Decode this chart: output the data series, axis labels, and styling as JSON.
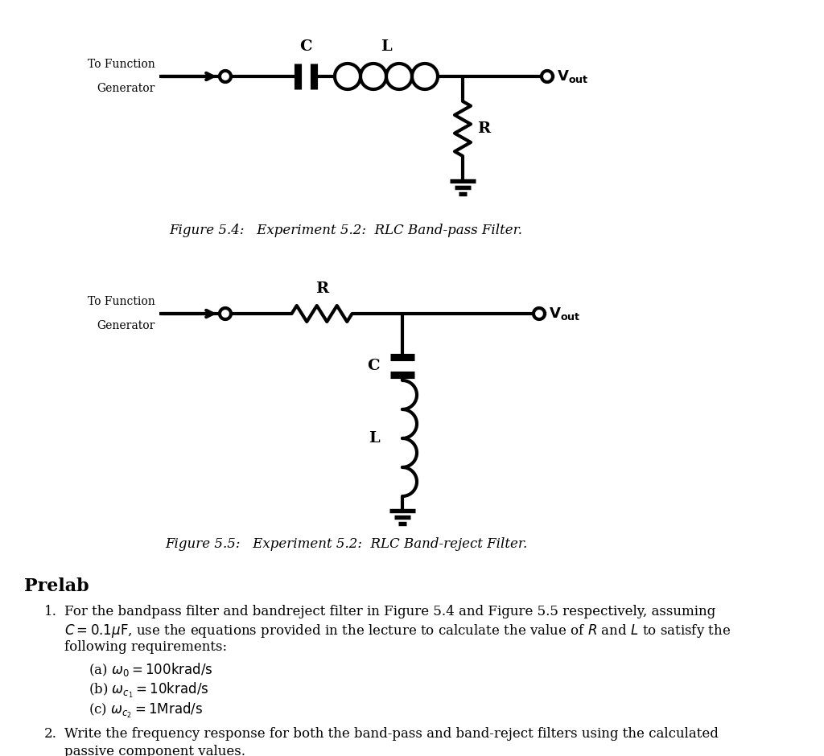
{
  "bg_color": "#ffffff",
  "fig_44_caption": "Figure 5.4:   Experiment 5.2:  RLC Band-pass Filter.",
  "fig_55_caption": "Figure 5.5:   Experiment 5.2:  RLC Band-reject Filter.",
  "prelab_title": "Prelab"
}
